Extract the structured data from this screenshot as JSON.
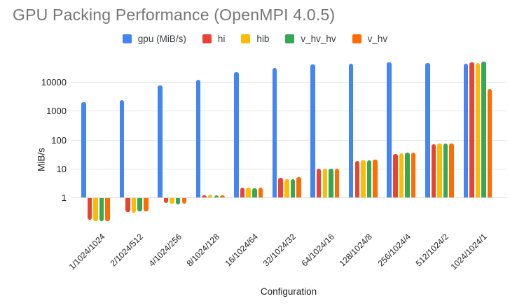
{
  "title": "GPU Packing Performance (OpenMPI 4.0.5)",
  "legend": {
    "items": [
      {
        "label": "gpu (MiB/s)",
        "color": "#4285F4"
      },
      {
        "label": "hi",
        "color": "#EA4335"
      },
      {
        "label": "hib",
        "color": "#FBBC04"
      },
      {
        "label": "v_hv_hv",
        "color": "#34A853"
      },
      {
        "label": "v_hv",
        "color": "#FF6D01"
      }
    ]
  },
  "y_axis": {
    "label": "MiB/s",
    "tick_labels": [
      "1",
      "10",
      "100",
      "1000",
      "10000"
    ]
  },
  "x_axis": {
    "label": "Configuration"
  },
  "chart_data": {
    "type": "bar",
    "title": "GPU Packing Performance (OpenMPI 4.0.5)",
    "xlabel": "Configuration",
    "ylabel": "MiB/s",
    "y_scale": "log10",
    "baseline": 1,
    "gridlines": [
      1,
      10,
      100,
      1000,
      10000
    ],
    "ylim": [
      0.1,
      100000
    ],
    "legend_position": "top-center",
    "grid": "horizontal-only",
    "categories": [
      "1/1024/1024",
      "2/1024/512",
      "4/1024/256",
      "8/1024/128",
      "16/1024/64",
      "32/1024/32",
      "64/1024/16",
      "128/1024/8",
      "256/1024/4",
      "512/1024/2",
      "1024/1024/1"
    ],
    "series": [
      {
        "name": "gpu (MiB/s)",
        "color": "#4285F4",
        "values": [
          2100,
          2500,
          7800,
          12500,
          23000,
          32000,
          41000,
          44000,
          50000,
          46000,
          44000
        ]
      },
      {
        "name": "hi",
        "color": "#EA4335",
        "values": [
          0.17,
          0.32,
          0.65,
          1.25,
          2.2,
          4.9,
          10,
          19,
          33,
          70,
          51000
        ]
      },
      {
        "name": "hib",
        "color": "#FBBC04",
        "values": [
          0.15,
          0.3,
          0.62,
          1.3,
          2.3,
          4.5,
          10,
          20,
          35,
          75,
          48000
        ]
      },
      {
        "name": "v_hv_hv",
        "color": "#34A853",
        "values": [
          0.15,
          0.33,
          0.6,
          1.2,
          2.1,
          4.4,
          10,
          20,
          36,
          74,
          53000
        ]
      },
      {
        "name": "v_hv",
        "color": "#FF6D01",
        "values": [
          0.15,
          0.33,
          0.62,
          1.25,
          2.3,
          5.1,
          10,
          21,
          37,
          77,
          6000
        ]
      }
    ]
  }
}
